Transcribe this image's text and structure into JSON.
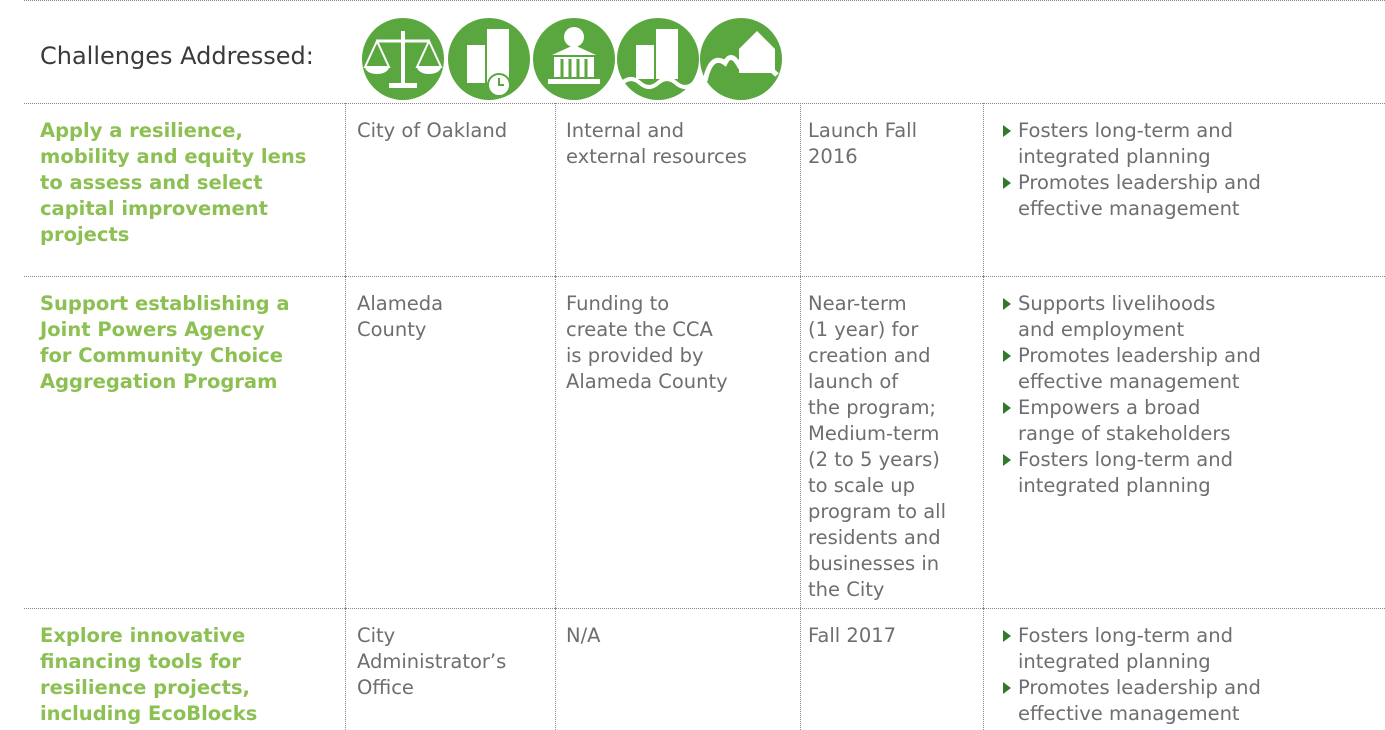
{
  "header": {
    "title": "Challenges Addressed:"
  },
  "table": {
    "rows": [
      {
        "action": [
          "Apply a resilience,",
          "mobility and equity lens",
          "to assess and select",
          "capital improvement",
          "projects"
        ],
        "lead": [
          "City of Oakland"
        ],
        "resources": [
          "Internal and",
          "external resources"
        ],
        "timeline": [
          "Launch Fall",
          "2016"
        ],
        "benefits": [
          [
            "Fosters long-term and",
            "integrated planning"
          ],
          [
            "Promotes leadership and",
            "effective management"
          ]
        ]
      },
      {
        "action": [
          "Support establishing a",
          "Joint Powers Agency",
          "for Community Choice",
          "Aggregation Program"
        ],
        "lead": [
          "Alameda",
          "County"
        ],
        "resources": [
          "Funding to",
          "create the CCA",
          "is provided by",
          "Alameda County"
        ],
        "timeline": [
          "Near-term",
          "(1 year) for",
          "creation and",
          "launch of",
          "the program;",
          "Medium-term",
          "(2 to 5 years)",
          "to scale up",
          "program to all",
          "residents and",
          "businesses in",
          "the City"
        ],
        "benefits": [
          [
            "Supports livelihoods",
            "and employment"
          ],
          [
            "Promotes leadership and",
            "effective management"
          ],
          [
            "Empowers a broad",
            "range of stakeholders"
          ],
          [
            "Fosters long-term and",
            "integrated planning"
          ]
        ]
      },
      {
        "action": [
          "Explore innovative",
          "financing tools for",
          "resilience projects,",
          "including EcoBlocks"
        ],
        "lead": [
          "City",
          "Administrator’s",
          "Office"
        ],
        "resources": [
          "N/A"
        ],
        "timeline": [
          "Fall 2017"
        ],
        "benefits": [
          [
            "Fosters long-term and",
            "integrated planning"
          ],
          [
            "Promotes leadership and",
            "effective management"
          ]
        ]
      }
    ]
  }
}
